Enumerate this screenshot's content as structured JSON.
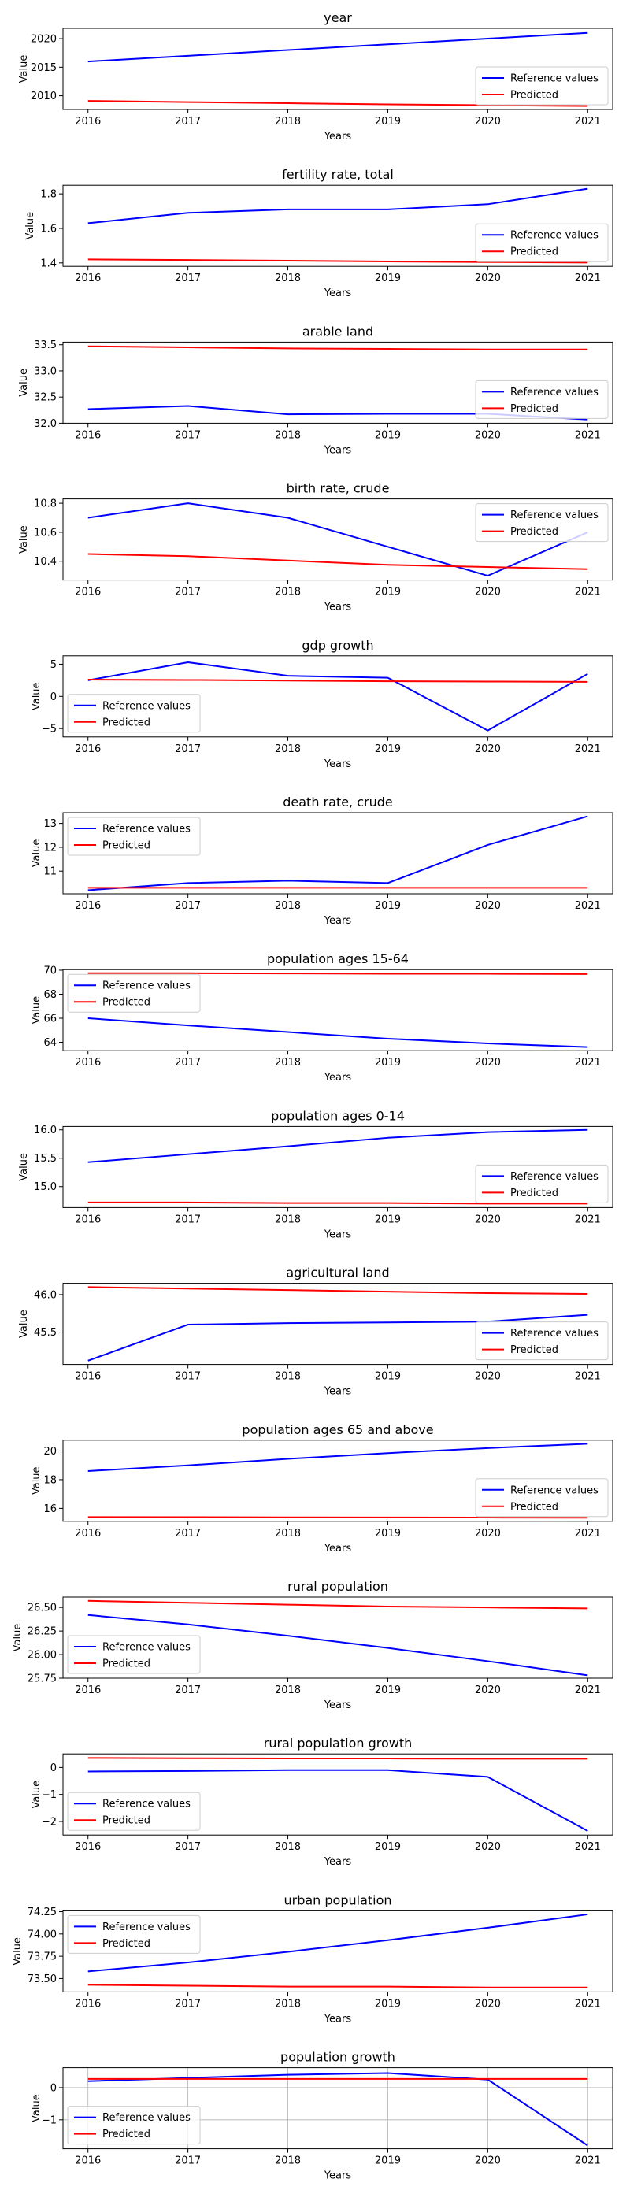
{
  "legend": {
    "reference_label": "Reference values",
    "predicted_label": "Predicted",
    "reference_color": "#0000ff",
    "predicted_color": "#ff0000"
  },
  "chart_data": [
    {
      "type": "line",
      "title": "year",
      "xlabel": "Years",
      "ylabel": "Value",
      "x": [
        2016,
        2017,
        2018,
        2019,
        2020,
        2021
      ],
      "series": [
        {
          "name": "Reference values",
          "values": [
            2016,
            2017,
            2018,
            2019,
            2020,
            2021
          ]
        },
        {
          "name": "Predicted",
          "values": [
            2009.1,
            2008.9,
            2008.7,
            2008.5,
            2008.35,
            2008.2
          ]
        }
      ],
      "ylim": [
        2007.6,
        2021.8
      ],
      "yticks": [
        2010,
        2015,
        2020
      ],
      "yticklabels": [
        "2010",
        "2015",
        "2020"
      ],
      "legend": "lower-right",
      "grid": false
    },
    {
      "type": "line",
      "title": "fertility rate, total",
      "xlabel": "Years",
      "ylabel": "Value",
      "x": [
        2016,
        2017,
        2018,
        2019,
        2020,
        2021
      ],
      "series": [
        {
          "name": "Reference values",
          "values": [
            1.63,
            1.69,
            1.71,
            1.71,
            1.74,
            1.83
          ]
        },
        {
          "name": "Predicted",
          "values": [
            1.42,
            1.417,
            1.413,
            1.408,
            1.405,
            1.402
          ]
        }
      ],
      "ylim": [
        1.38,
        1.85
      ],
      "yticks": [
        1.4,
        1.6,
        1.8
      ],
      "yticklabels": [
        "1.4",
        "1.6",
        "1.8"
      ],
      "legend": "lower-right",
      "grid": false
    },
    {
      "type": "line",
      "title": "arable land",
      "xlabel": "Years",
      "ylabel": "Value",
      "x": [
        2016,
        2017,
        2018,
        2019,
        2020,
        2021
      ],
      "series": [
        {
          "name": "Reference values",
          "values": [
            32.27,
            32.33,
            32.17,
            32.18,
            32.18,
            32.07
          ]
        },
        {
          "name": "Predicted",
          "values": [
            33.47,
            33.45,
            33.43,
            33.42,
            33.41,
            33.41
          ]
        }
      ],
      "ylim": [
        32.0,
        33.55
      ],
      "yticks": [
        32.0,
        32.5,
        33.0,
        33.5
      ],
      "yticklabels": [
        "32.0",
        "32.5",
        "33.0",
        "33.5"
      ],
      "legend": "lower-right",
      "grid": false
    },
    {
      "type": "line",
      "title": "birth rate, crude",
      "xlabel": "Years",
      "ylabel": "Value",
      "x": [
        2016,
        2017,
        2018,
        2019,
        2020,
        2021
      ],
      "series": [
        {
          "name": "Reference values",
          "values": [
            10.7,
            10.8,
            10.7,
            10.5,
            10.3,
            10.6
          ]
        },
        {
          "name": "Predicted",
          "values": [
            10.45,
            10.435,
            10.405,
            10.375,
            10.36,
            10.345
          ]
        }
      ],
      "ylim": [
        10.27,
        10.83
      ],
      "yticks": [
        10.4,
        10.6,
        10.8
      ],
      "yticklabels": [
        "10.4",
        "10.6",
        "10.8"
      ],
      "legend": "upper-right",
      "grid": false
    },
    {
      "type": "line",
      "title": "gdp growth",
      "xlabel": "Years",
      "ylabel": "Value",
      "x": [
        2016,
        2017,
        2018,
        2019,
        2020,
        2021
      ],
      "series": [
        {
          "name": "Reference values",
          "values": [
            2.5,
            5.3,
            3.2,
            2.9,
            -5.3,
            3.5
          ]
        },
        {
          "name": "Predicted",
          "values": [
            2.6,
            2.55,
            2.45,
            2.35,
            2.3,
            2.25
          ]
        }
      ],
      "ylim": [
        -6.3,
        6.3
      ],
      "yticks": [
        -5,
        0,
        5
      ],
      "yticklabels": [
        "−5",
        "0",
        "5"
      ],
      "legend": "lower-left",
      "grid": false
    },
    {
      "type": "line",
      "title": "death rate, crude",
      "xlabel": "Years",
      "ylabel": "Value",
      "x": [
        2016,
        2017,
        2018,
        2019,
        2020,
        2021
      ],
      "series": [
        {
          "name": "Reference values",
          "values": [
            10.2,
            10.5,
            10.6,
            10.5,
            12.1,
            13.3
          ]
        },
        {
          "name": "Predicted",
          "values": [
            10.3,
            10.3,
            10.3,
            10.3,
            10.3,
            10.3
          ]
        }
      ],
      "ylim": [
        10.05,
        13.45
      ],
      "yticks": [
        11,
        12,
        13
      ],
      "yticklabels": [
        "11",
        "12",
        "13"
      ],
      "legend": "upper-left",
      "grid": false
    },
    {
      "type": "line",
      "title": "population ages 15-64",
      "xlabel": "Years",
      "ylabel": "Value",
      "x": [
        2016,
        2017,
        2018,
        2019,
        2020,
        2021
      ],
      "series": [
        {
          "name": "Reference values",
          "values": [
            66.0,
            65.4,
            64.85,
            64.3,
            63.9,
            63.6
          ]
        },
        {
          "name": "Predicted",
          "values": [
            69.75,
            69.75,
            69.73,
            69.7,
            69.7,
            69.68
          ]
        }
      ],
      "ylim": [
        63.3,
        70.05
      ],
      "yticks": [
        64,
        66,
        68,
        70
      ],
      "yticklabels": [
        "64",
        "66",
        "68",
        "70"
      ],
      "legend": "upper-left",
      "grid": false
    },
    {
      "type": "line",
      "title": "population ages 0-14",
      "xlabel": "Years",
      "ylabel": "Value",
      "x": [
        2016,
        2017,
        2018,
        2019,
        2020,
        2021
      ],
      "series": [
        {
          "name": "Reference values",
          "values": [
            15.43,
            15.57,
            15.71,
            15.86,
            15.96,
            16.0
          ]
        },
        {
          "name": "Predicted",
          "values": [
            14.72,
            14.72,
            14.71,
            14.71,
            14.7,
            14.7
          ]
        }
      ],
      "ylim": [
        14.63,
        16.06
      ],
      "yticks": [
        15.0,
        15.5,
        16.0
      ],
      "yticklabels": [
        "15.0",
        "15.5",
        "16.0"
      ],
      "legend": "lower-right",
      "grid": false
    },
    {
      "type": "line",
      "title": "agricultural land",
      "xlabel": "Years",
      "ylabel": "Value",
      "x": [
        2016,
        2017,
        2018,
        2019,
        2020,
        2021
      ],
      "series": [
        {
          "name": "Reference values",
          "values": [
            45.12,
            45.6,
            45.62,
            45.63,
            45.64,
            45.73
          ]
        },
        {
          "name": "Predicted",
          "values": [
            46.1,
            46.08,
            46.06,
            46.04,
            46.02,
            46.01
          ]
        }
      ],
      "ylim": [
        45.07,
        46.15
      ],
      "yticks": [
        45.5,
        46.0
      ],
      "yticklabels": [
        "45.5",
        "46.0"
      ],
      "legend": "lower-right",
      "grid": false
    },
    {
      "type": "line",
      "title": "population ages 65 and above",
      "xlabel": "Years",
      "ylabel": "Value",
      "x": [
        2016,
        2017,
        2018,
        2019,
        2020,
        2021
      ],
      "series": [
        {
          "name": "Reference values",
          "values": [
            18.6,
            19.0,
            19.45,
            19.85,
            20.2,
            20.5
          ]
        },
        {
          "name": "Predicted",
          "values": [
            15.4,
            15.39,
            15.38,
            15.37,
            15.36,
            15.35
          ]
        }
      ],
      "ylim": [
        15.1,
        20.75
      ],
      "yticks": [
        16,
        18,
        20
      ],
      "yticklabels": [
        "16",
        "18",
        "20"
      ],
      "legend": "lower-right",
      "grid": false
    },
    {
      "type": "line",
      "title": "rural population",
      "xlabel": "Years",
      "ylabel": "Value",
      "x": [
        2016,
        2017,
        2018,
        2019,
        2020,
        2021
      ],
      "series": [
        {
          "name": "Reference values",
          "values": [
            26.42,
            26.32,
            26.2,
            26.07,
            25.93,
            25.78
          ]
        },
        {
          "name": "Predicted",
          "values": [
            26.57,
            26.55,
            26.53,
            26.51,
            26.5,
            26.49
          ]
        }
      ],
      "ylim": [
        25.75,
        26.61
      ],
      "yticks": [
        25.75,
        26.0,
        26.25,
        26.5
      ],
      "yticklabels": [
        "25.75",
        "26.00",
        "26.25",
        "26.50"
      ],
      "legend": "lower-left",
      "grid": false
    },
    {
      "type": "line",
      "title": "rural population growth",
      "xlabel": "Years",
      "ylabel": "Value",
      "x": [
        2016,
        2017,
        2018,
        2019,
        2020,
        2021
      ],
      "series": [
        {
          "name": "Reference values",
          "values": [
            -0.15,
            -0.13,
            -0.1,
            -0.1,
            -0.35,
            -2.35
          ]
        },
        {
          "name": "Predicted",
          "values": [
            0.35,
            0.34,
            0.33,
            0.33,
            0.32,
            0.32
          ]
        }
      ],
      "ylim": [
        -2.5,
        0.5
      ],
      "yticks": [
        -2,
        -1,
        0
      ],
      "yticklabels": [
        "−2",
        "−1",
        "0"
      ],
      "legend": "lower-left",
      "grid": false
    },
    {
      "type": "line",
      "title": "urban population",
      "xlabel": "Years",
      "ylabel": "Value",
      "x": [
        2016,
        2017,
        2018,
        2019,
        2020,
        2021
      ],
      "series": [
        {
          "name": "Reference values",
          "values": [
            73.58,
            73.68,
            73.8,
            73.93,
            74.07,
            74.22
          ]
        },
        {
          "name": "Predicted",
          "values": [
            73.43,
            73.42,
            73.41,
            73.41,
            73.4,
            73.4
          ]
        }
      ],
      "ylim": [
        73.35,
        74.26
      ],
      "yticks": [
        73.5,
        73.75,
        74.0,
        74.25
      ],
      "yticklabels": [
        "73.50",
        "73.75",
        "74.00",
        "74.25"
      ],
      "legend": "upper-left",
      "grid": false
    },
    {
      "type": "line",
      "title": "population growth",
      "xlabel": "Years",
      "ylabel": "Value",
      "x": [
        2016,
        2017,
        2018,
        2019,
        2020,
        2021
      ],
      "series": [
        {
          "name": "Reference values",
          "values": [
            0.2,
            0.3,
            0.4,
            0.45,
            0.25,
            -1.8
          ]
        },
        {
          "name": "Predicted",
          "values": [
            0.27,
            0.27,
            0.27,
            0.27,
            0.27,
            0.27
          ]
        }
      ],
      "ylim": [
        -1.9,
        0.62
      ],
      "yticks": [
        -1,
        0
      ],
      "yticklabels": [
        "−1",
        "0"
      ],
      "legend": "lower-left",
      "grid": true
    }
  ]
}
